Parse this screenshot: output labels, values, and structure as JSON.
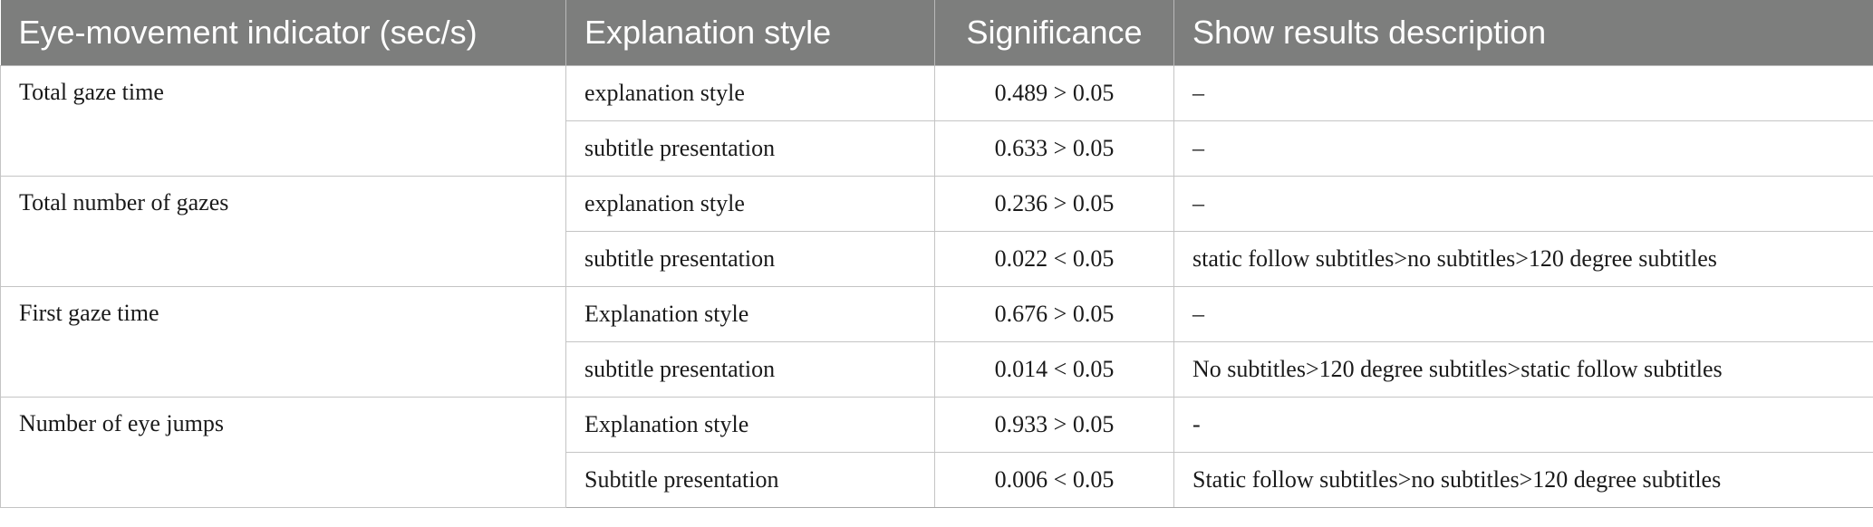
{
  "table": {
    "headers": [
      "Eye-movement indicator (sec/s)",
      "Explanation style",
      "Significance",
      "Show results description"
    ],
    "groups": [
      {
        "indicator": "Total gaze time",
        "rows": [
          {
            "style": "explanation style",
            "significance": "0.489 > 0.05",
            "description": "–"
          },
          {
            "style": "subtitle presentation",
            "significance": "0.633 > 0.05",
            "description": "–"
          }
        ]
      },
      {
        "indicator": "Total number of gazes",
        "rows": [
          {
            "style": "explanation style",
            "significance": "0.236 > 0.05",
            "description": "–"
          },
          {
            "style": "subtitle presentation",
            "significance": "0.022 < 0.05",
            "description": "static follow subtitles>no subtitles>120 degree subtitles"
          }
        ]
      },
      {
        "indicator": "First gaze time",
        "rows": [
          {
            "style": "Explanation style",
            "significance": "0.676 > 0.05",
            "description": "–"
          },
          {
            "style": "subtitle presentation",
            "significance": "0.014 < 0.05",
            "description": "No subtitles>120 degree subtitles>static follow subtitles"
          }
        ]
      },
      {
        "indicator": "Number of eye jumps",
        "rows": [
          {
            "style": "Explanation style",
            "significance": "0.933 > 0.05",
            "description": "-"
          },
          {
            "style": "Subtitle presentation",
            "significance": "0.006 < 0.05",
            "description": "Static follow subtitles>no subtitles>120 degree subtitles"
          }
        ]
      }
    ]
  }
}
